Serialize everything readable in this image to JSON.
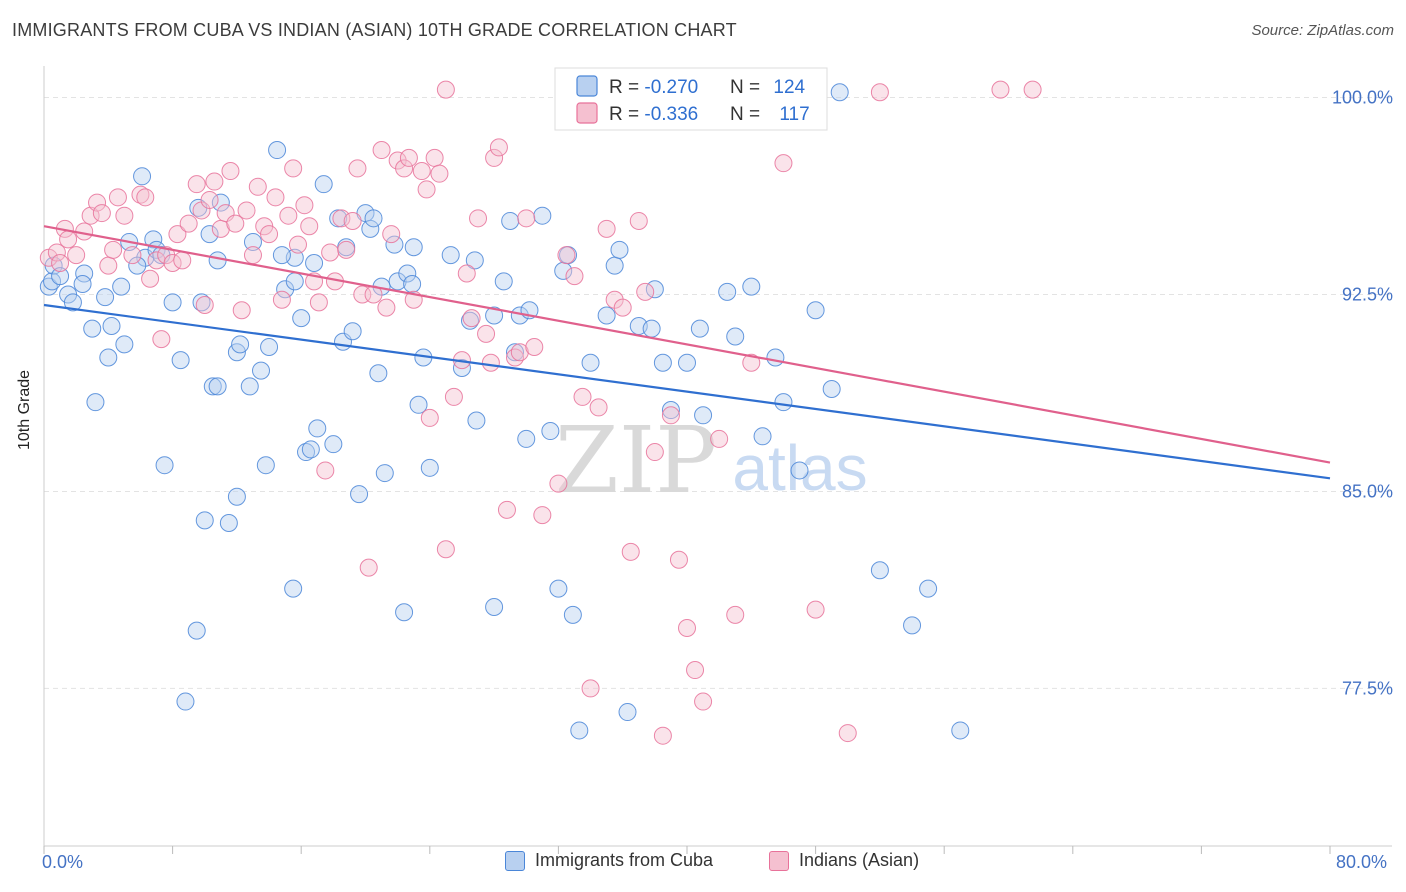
{
  "header": {
    "title": "IMMIGRANTS FROM CUBA VS INDIAN (ASIAN) 10TH GRADE CORRELATION CHART",
    "source": "Source: ZipAtlas.com"
  },
  "watermark": {
    "zip": "ZIP",
    "atlas": "atlas"
  },
  "colors": {
    "blue": "#4a86d8",
    "blue_fill": "#b8d0f0",
    "pink": "#e8729a",
    "pink_fill": "#f5c0d0",
    "blue_line": "#2f6fd0",
    "pink_line": "#e0608c",
    "tick_label": "#4472c4"
  },
  "legend_top": {
    "rows": [
      {
        "r_label": "R = ",
        "r_value": "-0.270",
        "n_label": "N = ",
        "n_value": "124"
      },
      {
        "r_label": "R = ",
        "r_value": "-0.336",
        "n_label": "N = ",
        "n_value": "117"
      }
    ]
  },
  "legend_bottom": [
    "Immigrants from Cuba",
    "Indians (Asian)"
  ],
  "chart_data": {
    "type": "scatter",
    "title": "IMMIGRANTS FROM CUBA VS INDIAN (ASIAN) 10TH GRADE CORRELATION CHART",
    "xlabel": "",
    "ylabel": "10th Grade",
    "xlim": [
      0,
      80
    ],
    "ylim": [
      71.5,
      101.2
    ],
    "x_tick_labels": [
      "0.0%",
      "80.0%"
    ],
    "y_ticks": [
      77.5,
      85.0,
      92.5,
      100.0
    ],
    "y_tick_labels": [
      "77.5%",
      "85.0%",
      "92.5%",
      "100.0%"
    ],
    "grid": true,
    "legend_placement": "top-center",
    "series": [
      {
        "name": "Immigrants from Cuba",
        "R": -0.27,
        "N": 124,
        "trend": {
          "x": [
            0,
            80
          ],
          "y": [
            92.1,
            85.5
          ]
        },
        "points": [
          [
            0.3,
            92.8
          ],
          [
            0.5,
            93.0
          ],
          [
            0.6,
            93.6
          ],
          [
            1.0,
            93.2
          ],
          [
            1.5,
            92.5
          ],
          [
            2.5,
            93.3
          ],
          [
            1.8,
            92.2
          ],
          [
            2.4,
            92.9
          ],
          [
            3.0,
            91.2
          ],
          [
            3.2,
            88.4
          ],
          [
            3.8,
            92.4
          ],
          [
            4.0,
            90.1
          ],
          [
            4.2,
            91.3
          ],
          [
            4.8,
            92.8
          ],
          [
            5.0,
            90.6
          ],
          [
            5.3,
            94.5
          ],
          [
            6.1,
            97.0
          ],
          [
            6.3,
            93.9
          ],
          [
            6.8,
            94.6
          ],
          [
            7.0,
            94.2
          ],
          [
            7.3,
            94.0
          ],
          [
            7.5,
            86.0
          ],
          [
            8.0,
            92.2
          ],
          [
            8.5,
            90.0
          ],
          [
            8.8,
            77.0
          ],
          [
            9.5,
            79.7
          ],
          [
            9.6,
            95.8
          ],
          [
            10.0,
            83.9
          ],
          [
            10.3,
            94.8
          ],
          [
            10.5,
            89.0
          ],
          [
            10.8,
            89.0
          ],
          [
            11.0,
            96.0
          ],
          [
            10.8,
            93.8
          ],
          [
            11.5,
            83.8
          ],
          [
            12.0,
            84.8
          ],
          [
            12.0,
            90.3
          ],
          [
            12.2,
            90.6
          ],
          [
            12.8,
            89.0
          ],
          [
            13.0,
            94.5
          ],
          [
            13.5,
            89.6
          ],
          [
            13.8,
            86.0
          ],
          [
            14.0,
            90.5
          ],
          [
            14.5,
            98.0
          ],
          [
            15.0,
            92.7
          ],
          [
            15.5,
            81.3
          ],
          [
            15.6,
            93.9
          ],
          [
            15.6,
            93.0
          ],
          [
            16.0,
            91.6
          ],
          [
            16.3,
            86.5
          ],
          [
            16.6,
            86.6
          ],
          [
            16.8,
            93.7
          ],
          [
            17.0,
            87.4
          ],
          [
            17.4,
            96.7
          ],
          [
            18.0,
            86.8
          ],
          [
            18.3,
            95.4
          ],
          [
            18.6,
            90.7
          ],
          [
            18.8,
            94.3
          ],
          [
            19.2,
            91.1
          ],
          [
            19.6,
            84.9
          ],
          [
            20.0,
            95.6
          ],
          [
            20.3,
            95.0
          ],
          [
            20.5,
            95.4
          ],
          [
            20.8,
            89.5
          ],
          [
            21.2,
            85.7
          ],
          [
            21.8,
            94.4
          ],
          [
            22.0,
            93.0
          ],
          [
            22.4,
            80.4
          ],
          [
            22.6,
            93.3
          ],
          [
            22.9,
            92.9
          ],
          [
            23.0,
            94.3
          ],
          [
            23.3,
            88.3
          ],
          [
            23.6,
            90.1
          ],
          [
            24.0,
            85.9
          ],
          [
            25.3,
            94.0
          ],
          [
            26.0,
            89.7
          ],
          [
            26.5,
            91.5
          ],
          [
            26.8,
            93.8
          ],
          [
            26.9,
            87.7
          ],
          [
            28.0,
            91.7
          ],
          [
            28.0,
            80.6
          ],
          [
            28.6,
            93.0
          ],
          [
            29.0,
            95.3
          ],
          [
            29.3,
            90.3
          ],
          [
            29.6,
            91.7
          ],
          [
            30.2,
            91.9
          ],
          [
            31.0,
            95.5
          ],
          [
            31.5,
            87.3
          ],
          [
            32.0,
            81.3
          ],
          [
            32.3,
            93.4
          ],
          [
            32.6,
            94.0
          ],
          [
            32.9,
            80.3
          ],
          [
            33.3,
            75.9
          ],
          [
            34.0,
            89.9
          ],
          [
            35.0,
            91.7
          ],
          [
            35.5,
            93.6
          ],
          [
            35.8,
            94.2
          ],
          [
            36.3,
            76.6
          ],
          [
            37.0,
            91.3
          ],
          [
            37.8,
            91.2
          ],
          [
            38.0,
            92.7
          ],
          [
            38.5,
            89.9
          ],
          [
            39.0,
            88.1
          ],
          [
            40.0,
            89.9
          ],
          [
            40.8,
            91.2
          ],
          [
            41.0,
            87.9
          ],
          [
            42.5,
            92.6
          ],
          [
            43.0,
            90.9
          ],
          [
            44.0,
            92.8
          ],
          [
            44.7,
            87.1
          ],
          [
            45.5,
            90.1
          ],
          [
            46.0,
            88.4
          ],
          [
            47.0,
            85.8
          ],
          [
            48.0,
            91.9
          ],
          [
            49.0,
            88.9
          ],
          [
            49.5,
            100.2
          ],
          [
            52.0,
            82.0
          ],
          [
            54.0,
            79.9
          ],
          [
            55.0,
            81.3
          ],
          [
            57.0,
            75.9
          ],
          [
            5.8,
            93.6
          ],
          [
            9.8,
            92.2
          ],
          [
            14.8,
            94.0
          ],
          [
            21.0,
            92.8
          ],
          [
            30.0,
            87.0
          ]
        ]
      },
      {
        "name": "Indians (Asian)",
        "R": -0.336,
        "N": 117,
        "trend": {
          "x": [
            0,
            80
          ],
          "y": [
            95.1,
            86.1
          ]
        },
        "points": [
          [
            0.3,
            93.9
          ],
          [
            0.8,
            94.1
          ],
          [
            1.0,
            93.7
          ],
          [
            1.3,
            95.0
          ],
          [
            1.5,
            94.6
          ],
          [
            2.0,
            94.0
          ],
          [
            2.5,
            94.9
          ],
          [
            2.9,
            95.5
          ],
          [
            3.3,
            96.0
          ],
          [
            3.6,
            95.6
          ],
          [
            4.0,
            93.6
          ],
          [
            4.3,
            94.2
          ],
          [
            4.6,
            96.2
          ],
          [
            5.0,
            95.5
          ],
          [
            5.5,
            94.0
          ],
          [
            6.0,
            96.3
          ],
          [
            6.3,
            96.2
          ],
          [
            6.6,
            93.1
          ],
          [
            7.0,
            93.8
          ],
          [
            7.3,
            90.8
          ],
          [
            7.6,
            94.0
          ],
          [
            8.0,
            93.7
          ],
          [
            8.3,
            94.8
          ],
          [
            8.6,
            93.8
          ],
          [
            9.0,
            95.2
          ],
          [
            9.5,
            96.7
          ],
          [
            9.8,
            95.7
          ],
          [
            10.0,
            92.1
          ],
          [
            10.3,
            96.1
          ],
          [
            10.6,
            96.8
          ],
          [
            11.0,
            95.0
          ],
          [
            11.3,
            95.6
          ],
          [
            11.6,
            97.2
          ],
          [
            11.9,
            95.2
          ],
          [
            12.3,
            91.9
          ],
          [
            12.6,
            95.7
          ],
          [
            13.0,
            94.0
          ],
          [
            13.3,
            96.6
          ],
          [
            13.7,
            95.1
          ],
          [
            14.0,
            94.8
          ],
          [
            14.4,
            96.2
          ],
          [
            14.8,
            92.3
          ],
          [
            15.2,
            95.5
          ],
          [
            15.5,
            97.3
          ],
          [
            15.8,
            94.4
          ],
          [
            16.2,
            95.9
          ],
          [
            16.5,
            95.1
          ],
          [
            16.8,
            93.0
          ],
          [
            17.1,
            92.2
          ],
          [
            17.5,
            85.8
          ],
          [
            17.8,
            94.1
          ],
          [
            18.1,
            93.0
          ],
          [
            18.5,
            95.4
          ],
          [
            18.8,
            94.2
          ],
          [
            19.2,
            95.3
          ],
          [
            19.5,
            97.3
          ],
          [
            19.8,
            92.5
          ],
          [
            20.2,
            82.1
          ],
          [
            20.5,
            92.5
          ],
          [
            21.0,
            98.0
          ],
          [
            21.3,
            92.0
          ],
          [
            21.6,
            94.8
          ],
          [
            22.0,
            97.6
          ],
          [
            22.4,
            97.3
          ],
          [
            22.7,
            97.7
          ],
          [
            23.0,
            92.3
          ],
          [
            23.5,
            97.2
          ],
          [
            23.8,
            96.5
          ],
          [
            24.0,
            87.8
          ],
          [
            24.3,
            97.7
          ],
          [
            24.6,
            97.1
          ],
          [
            25.0,
            82.8
          ],
          [
            25.5,
            88.6
          ],
          [
            26.0,
            90.0
          ],
          [
            26.3,
            93.3
          ],
          [
            26.6,
            91.6
          ],
          [
            27.0,
            95.4
          ],
          [
            27.5,
            91.0
          ],
          [
            27.8,
            89.9
          ],
          [
            28.0,
            97.7
          ],
          [
            28.3,
            98.1
          ],
          [
            28.8,
            84.3
          ],
          [
            29.3,
            90.1
          ],
          [
            29.6,
            90.3
          ],
          [
            30.0,
            95.4
          ],
          [
            30.5,
            90.5
          ],
          [
            31.0,
            84.1
          ],
          [
            32.0,
            85.3
          ],
          [
            32.5,
            94.0
          ],
          [
            33.0,
            93.2
          ],
          [
            33.5,
            88.6
          ],
          [
            34.0,
            77.5
          ],
          [
            34.5,
            88.2
          ],
          [
            35.0,
            95.0
          ],
          [
            35.5,
            92.3
          ],
          [
            36.0,
            92.0
          ],
          [
            36.5,
            82.7
          ],
          [
            37.0,
            95.3
          ],
          [
            37.4,
            92.6
          ],
          [
            38.0,
            86.5
          ],
          [
            38.5,
            75.7
          ],
          [
            39.0,
            87.9
          ],
          [
            39.5,
            82.4
          ],
          [
            40.0,
            79.8
          ],
          [
            40.5,
            78.2
          ],
          [
            41.0,
            77.0
          ],
          [
            42.0,
            87.0
          ],
          [
            43.0,
            80.3
          ],
          [
            44.0,
            89.9
          ],
          [
            46.0,
            97.5
          ],
          [
            48.0,
            80.5
          ],
          [
            50.0,
            75.8
          ],
          [
            52.0,
            100.2
          ],
          [
            59.5,
            100.3
          ],
          [
            61.5,
            100.3
          ],
          [
            38.0,
            100.2
          ],
          [
            25.0,
            100.3
          ]
        ]
      }
    ]
  }
}
